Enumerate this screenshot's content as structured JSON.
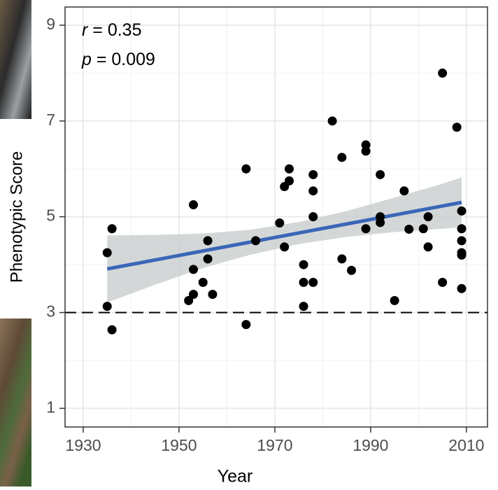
{
  "chart_data": {
    "type": "scatter",
    "x_label": "Year",
    "y_label": "Phenotypic Score",
    "annotations": [
      "r = 0.35",
      "p = 0.009"
    ],
    "x": [
      1935,
      1936,
      1935,
      1936,
      1953,
      1953,
      1953,
      1952,
      1955,
      1956,
      1956,
      1957,
      1964,
      1964,
      1966,
      1971,
      1972,
      1972,
      1973,
      1973,
      1976,
      1976,
      1976,
      1978,
      1978,
      1978,
      1978,
      1982,
      1984,
      1984,
      1986,
      1989,
      1989,
      1989,
      1992,
      1992,
      1992,
      1995,
      1997,
      1998,
      2001,
      2002,
      2002,
      2005,
      2005,
      2008,
      2009,
      2009,
      2009,
      2009,
      2009,
      2009
    ],
    "values": [
      4.25,
      4.75,
      3.13,
      2.64,
      5.25,
      3.9,
      3.38,
      3.25,
      3.63,
      4.5,
      4.12,
      3.38,
      6.0,
      2.75,
      4.5,
      4.87,
      4.37,
      5.63,
      5.75,
      6.0,
      4.0,
      3.63,
      3.13,
      5.88,
      5.54,
      5.0,
      3.63,
      7.0,
      6.24,
      4.12,
      3.88,
      6.5,
      6.37,
      4.75,
      5.88,
      5.0,
      4.88,
      3.25,
      5.54,
      4.74,
      4.75,
      5.0,
      4.37,
      8.0,
      3.63,
      6.87,
      5.12,
      4.75,
      4.5,
      4.25,
      4.2,
      3.5
    ],
    "color": "#000000",
    "fit": {
      "x": [
        1935,
        2009
      ],
      "values": [
        3.91,
        5.3
      ],
      "color": "#3a66b8"
    },
    "band": {
      "x": [
        1935,
        1945,
        1955,
        1965,
        1975,
        1985,
        1995,
        2005,
        2009
      ],
      "lower": [
        3.21,
        3.58,
        3.93,
        4.21,
        4.43,
        4.58,
        4.68,
        4.75,
        4.78
      ],
      "upper": [
        4.61,
        4.62,
        4.65,
        4.73,
        4.89,
        5.12,
        5.4,
        5.69,
        5.82
      ],
      "color": "#c4c9c9"
    },
    "hline": 3,
    "xlim": [
      1926.2,
      2014.4
    ],
    "ylim": [
      0.61,
      9.38
    ],
    "xticks": [
      1930,
      1950,
      1970,
      1990,
      2010
    ],
    "yticks": [
      1,
      3,
      5,
      7,
      9
    ],
    "grid": true
  }
}
